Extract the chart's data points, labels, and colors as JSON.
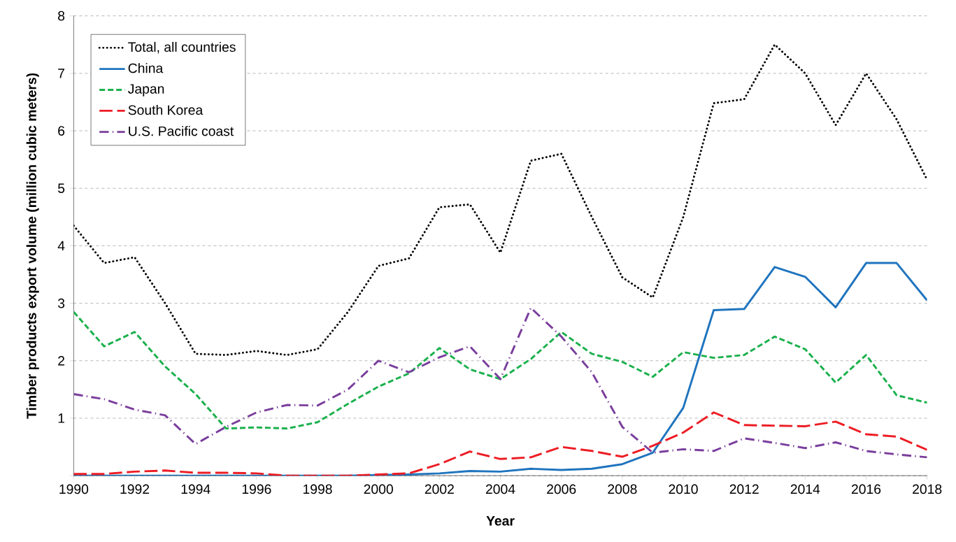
{
  "chart_data": {
    "type": "line",
    "xlabel": "Year",
    "ylabel": "Timber products export volume (million cubic meters)",
    "x": [
      1990,
      1991,
      1992,
      1993,
      1994,
      1995,
      1996,
      1997,
      1998,
      1999,
      2000,
      2001,
      2002,
      2003,
      2004,
      2005,
      2006,
      2007,
      2008,
      2009,
      2010,
      2011,
      2012,
      2013,
      2014,
      2015,
      2016,
      2017,
      2018
    ],
    "series": [
      {
        "name": "Total, all countries",
        "color": "#000000",
        "line_style": "dotted",
        "values": [
          4.35,
          3.7,
          3.8,
          3.0,
          2.12,
          2.1,
          2.17,
          2.1,
          2.2,
          2.85,
          3.65,
          3.78,
          4.67,
          4.72,
          3.88,
          5.48,
          5.6,
          4.5,
          3.45,
          3.1,
          4.5,
          6.48,
          6.55,
          7.5,
          7.0,
          6.1,
          7.0,
          6.2,
          5.15
        ]
      },
      {
        "name": "China",
        "color": "#1f74be",
        "line_style": "solid",
        "values": [
          0,
          0,
          0,
          0,
          0,
          0,
          0,
          0,
          0,
          0,
          0.01,
          0.02,
          0.04,
          0.08,
          0.07,
          0.12,
          0.1,
          0.12,
          0.2,
          0.4,
          1.18,
          2.88,
          2.9,
          3.63,
          3.46,
          2.93,
          3.7,
          3.7,
          3.05
        ]
      },
      {
        "name": "Japan",
        "color": "#1ab04c",
        "line_style": "dashed",
        "values": [
          2.85,
          2.25,
          2.5,
          1.9,
          1.42,
          0.82,
          0.84,
          0.82,
          0.93,
          1.25,
          1.55,
          1.78,
          2.22,
          1.85,
          1.68,
          2.03,
          2.5,
          2.12,
          1.98,
          1.72,
          2.15,
          2.05,
          2.1,
          2.42,
          2.2,
          1.62,
          2.1,
          1.4,
          1.27
        ]
      },
      {
        "name": "South Korea",
        "color": "#ed1c24",
        "line_style": "long dashed",
        "values": [
          0.03,
          0.03,
          0.07,
          0.09,
          0.05,
          0.05,
          0.04,
          0.0,
          0.0,
          0.0,
          0.02,
          0.04,
          0.2,
          0.42,
          0.29,
          0.32,
          0.5,
          0.43,
          0.33,
          0.52,
          0.75,
          1.1,
          0.88,
          0.87,
          0.86,
          0.94,
          0.72,
          0.68,
          0.45
        ]
      },
      {
        "name": "U.S. Pacific coast",
        "color": "#7a3e9c",
        "line_style": "dash dot",
        "values": [
          1.42,
          1.33,
          1.15,
          1.05,
          0.55,
          0.85,
          1.1,
          1.23,
          1.22,
          1.5,
          2.0,
          1.8,
          2.06,
          2.25,
          1.68,
          2.92,
          2.42,
          1.8,
          0.85,
          0.4,
          0.46,
          0.43,
          0.65,
          0.57,
          0.48,
          0.58,
          0.43,
          0.37,
          0.32
        ]
      }
    ],
    "xlim": [
      1990,
      2018
    ],
    "xticks": [
      1990,
      1992,
      1994,
      1996,
      1998,
      2000,
      2002,
      2004,
      2006,
      2008,
      2010,
      2012,
      2014,
      2016,
      2018
    ],
    "ylim": [
      0,
      8
    ],
    "yticks": [
      {
        "value": 0,
        "label": null
      },
      1,
      2,
      3,
      4,
      5,
      6,
      7,
      8
    ],
    "grid": "y",
    "legend": "top left",
    "marker": "none"
  }
}
